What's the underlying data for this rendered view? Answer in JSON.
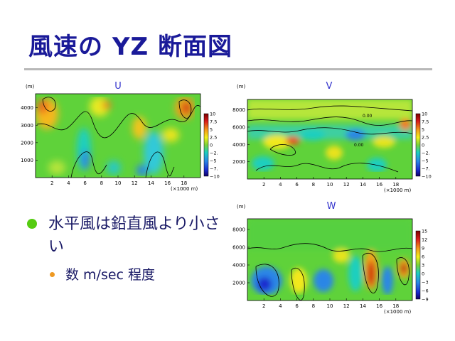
{
  "slide": {
    "title": "風速の YZ 断面図",
    "bullet_main": "水平風は鉛直風より小さい",
    "bullet_sub": "数 m/sec 程度"
  },
  "colors": {
    "title": "#1a1a99",
    "bullet": "#55cc11",
    "sub_bullet": "#ee9922",
    "contour": "#000000"
  },
  "chart_data": [
    {
      "type": "heatmap",
      "title": "U",
      "ylabel": "(m)",
      "xlabel": "(×1000 m)",
      "xticks": [
        "2",
        "4",
        "6",
        "8",
        "10",
        "12",
        "14",
        "16",
        "18"
      ],
      "yticks": [
        "1000",
        "2000",
        "3000",
        "4000"
      ],
      "xlim": [
        0,
        20
      ],
      "ylim": [
        0,
        4800
      ],
      "colorbar": [
        "10",
        "7.5",
        "5",
        "2.5",
        "0",
        "−2.",
        "−5",
        "−7.",
        "−10"
      ]
    },
    {
      "type": "heatmap",
      "title": "V",
      "ylabel": "(m)",
      "xlabel": "(×1000 m)",
      "xticks": [
        "2",
        "4",
        "6",
        "8",
        "10",
        "12",
        "14",
        "16",
        "18"
      ],
      "yticks": [
        "2000",
        "4000",
        "6000",
        "8000"
      ],
      "xlim": [
        0,
        20
      ],
      "ylim": [
        0,
        9200
      ],
      "colorbar": [
        "10",
        "7.5",
        "5",
        "2.5",
        "0",
        "−2.",
        "−5",
        "−7.",
        "−10"
      ],
      "contour_labels": [
        "0.00",
        "0.00"
      ]
    },
    {
      "type": "heatmap",
      "title": "W",
      "ylabel": "(m)",
      "xlabel": "(×1000 m)",
      "xticks": [
        "2",
        "4",
        "6",
        "8",
        "10",
        "12",
        "14",
        "16",
        "18"
      ],
      "yticks": [
        "2000",
        "4000",
        "6000",
        "8000"
      ],
      "xlim": [
        0,
        20
      ],
      "ylim": [
        0,
        9200
      ],
      "colorbar": [
        "15",
        "12",
        "9",
        "6",
        "3",
        "0",
        "−3",
        "−6",
        "−9"
      ]
    }
  ]
}
